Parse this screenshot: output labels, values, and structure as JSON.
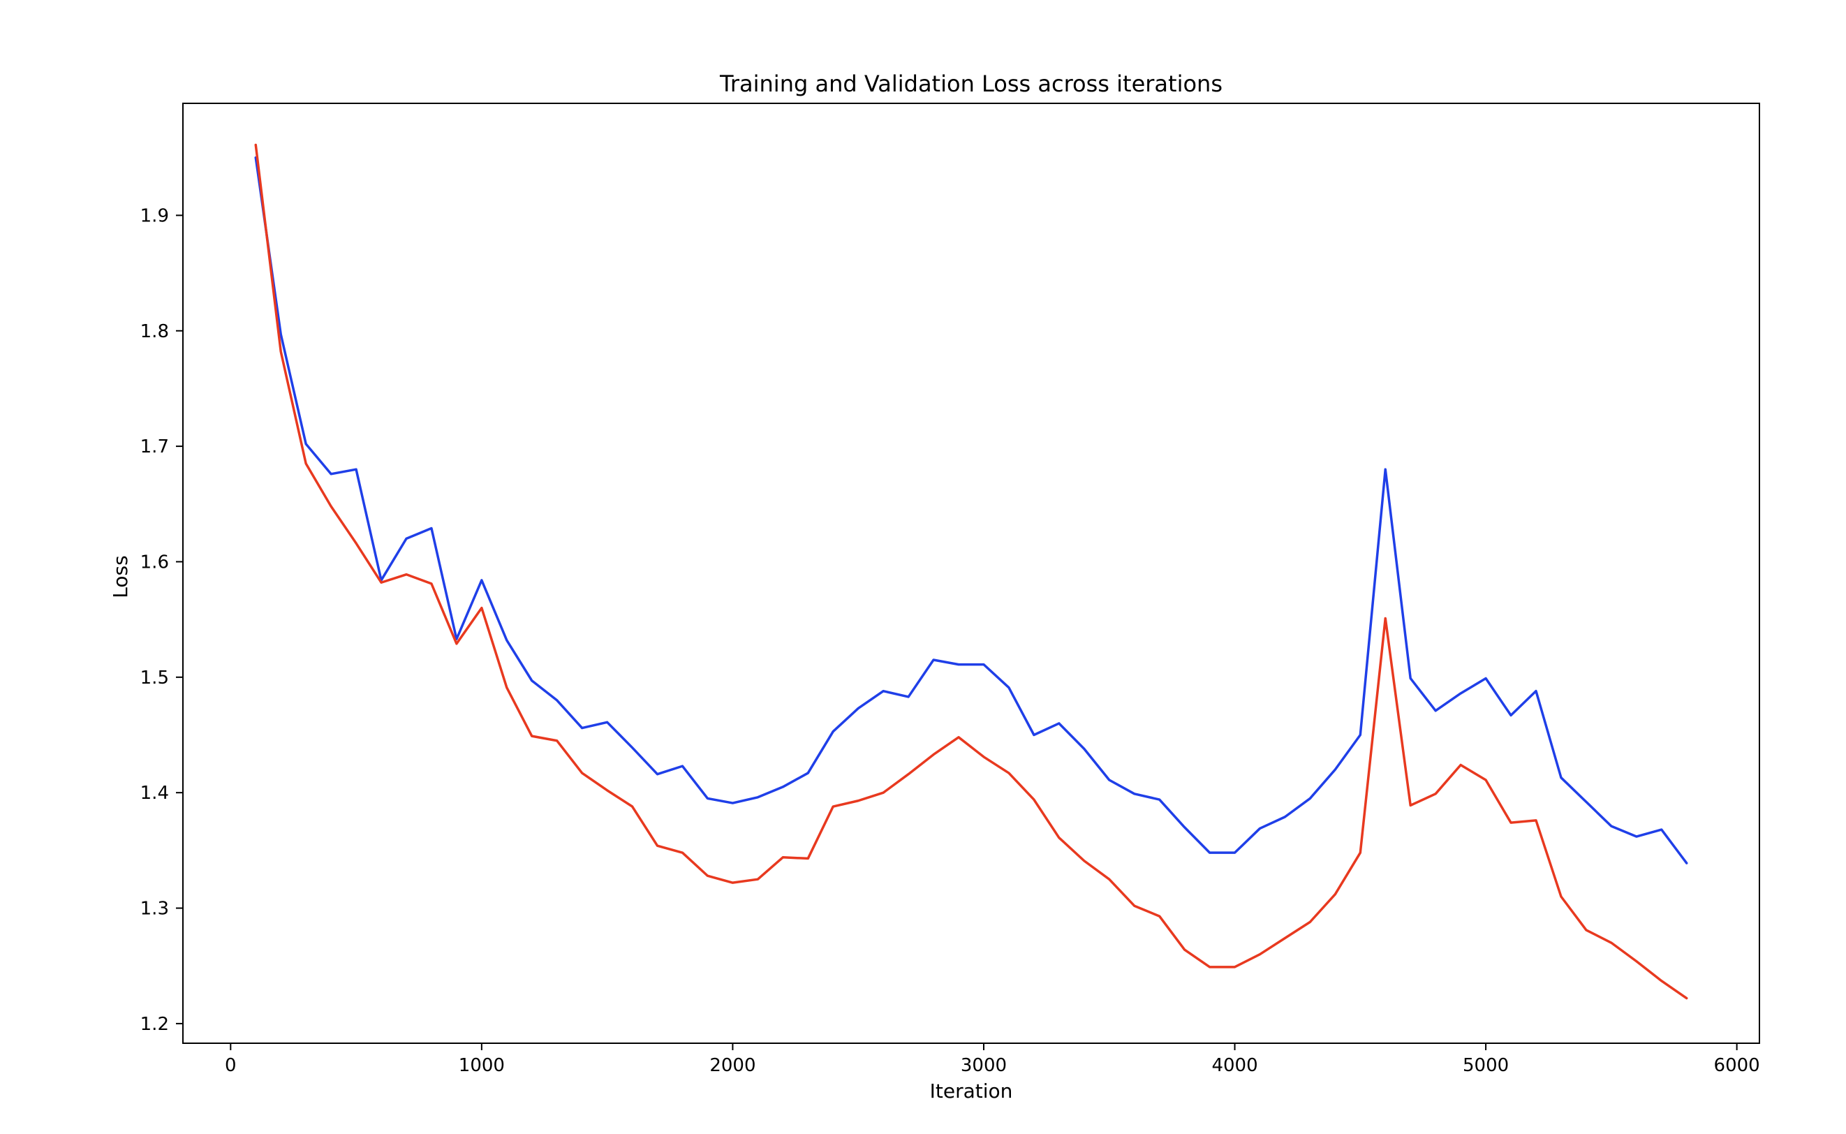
{
  "chart_data": {
    "type": "line",
    "title": "Training and Validation Loss across iterations",
    "xlabel": "Iteration",
    "ylabel": "Loss",
    "xlim": [
      -190,
      6090
    ],
    "ylim": [
      1.183,
      1.997
    ],
    "xticks": [
      0,
      1000,
      2000,
      3000,
      4000,
      5000,
      6000
    ],
    "xtick_labels": [
      "0",
      "1000",
      "2000",
      "3000",
      "4000",
      "5000",
      "6000"
    ],
    "yticks": [
      1.2,
      1.3,
      1.4,
      1.5,
      1.6,
      1.7,
      1.8,
      1.9
    ],
    "ytick_labels": [
      "1.2",
      "1.3",
      "1.4",
      "1.5",
      "1.6",
      "1.7",
      "1.8",
      "1.9"
    ],
    "grid": false,
    "legend": false,
    "x": [
      100,
      200,
      300,
      400,
      500,
      600,
      700,
      800,
      900,
      1000,
      1100,
      1200,
      1300,
      1400,
      1500,
      1600,
      1700,
      1800,
      1900,
      2000,
      2100,
      2200,
      2300,
      2400,
      2500,
      2600,
      2700,
      2800,
      2900,
      3000,
      3100,
      3200,
      3300,
      3400,
      3500,
      3600,
      3700,
      3800,
      3900,
      4000,
      4100,
      4200,
      4300,
      4400,
      4500,
      4600,
      4700,
      4800,
      4900,
      5000,
      5100,
      5200,
      5300,
      5400,
      5500,
      5600,
      5700,
      5800
    ],
    "series": [
      {
        "color": "#1f3fe8",
        "values": [
          1.95,
          1.797,
          1.702,
          1.676,
          1.68,
          1.584,
          1.62,
          1.629,
          1.533,
          1.584,
          1.532,
          1.497,
          1.48,
          1.456,
          1.461,
          1.439,
          1.416,
          1.423,
          1.395,
          1.391,
          1.396,
          1.405,
          1.417,
          1.453,
          1.473,
          1.488,
          1.483,
          1.515,
          1.511,
          1.511,
          1.491,
          1.45,
          1.46,
          1.438,
          1.411,
          1.399,
          1.394,
          1.37,
          1.348,
          1.348,
          1.369,
          1.379,
          1.395,
          1.42,
          1.45,
          1.68,
          1.499,
          1.471,
          1.486,
          1.499,
          1.467,
          1.488,
          1.413,
          1.392,
          1.371,
          1.362,
          1.368,
          1.339
        ]
      },
      {
        "color": "#e8391f",
        "values": [
          1.961,
          1.782,
          1.685,
          1.648,
          1.616,
          1.582,
          1.589,
          1.581,
          1.529,
          1.56,
          1.491,
          1.449,
          1.445,
          1.417,
          1.402,
          1.388,
          1.354,
          1.348,
          1.328,
          1.322,
          1.325,
          1.344,
          1.343,
          1.388,
          1.393,
          1.4,
          1.416,
          1.433,
          1.448,
          1.431,
          1.417,
          1.394,
          1.361,
          1.341,
          1.325,
          1.302,
          1.293,
          1.264,
          1.249,
          1.249,
          1.26,
          1.274,
          1.288,
          1.312,
          1.348,
          1.551,
          1.389,
          1.399,
          1.424,
          1.411,
          1.374,
          1.376,
          1.31,
          1.281,
          1.27,
          1.254,
          1.237,
          1.222
        ]
      }
    ]
  }
}
